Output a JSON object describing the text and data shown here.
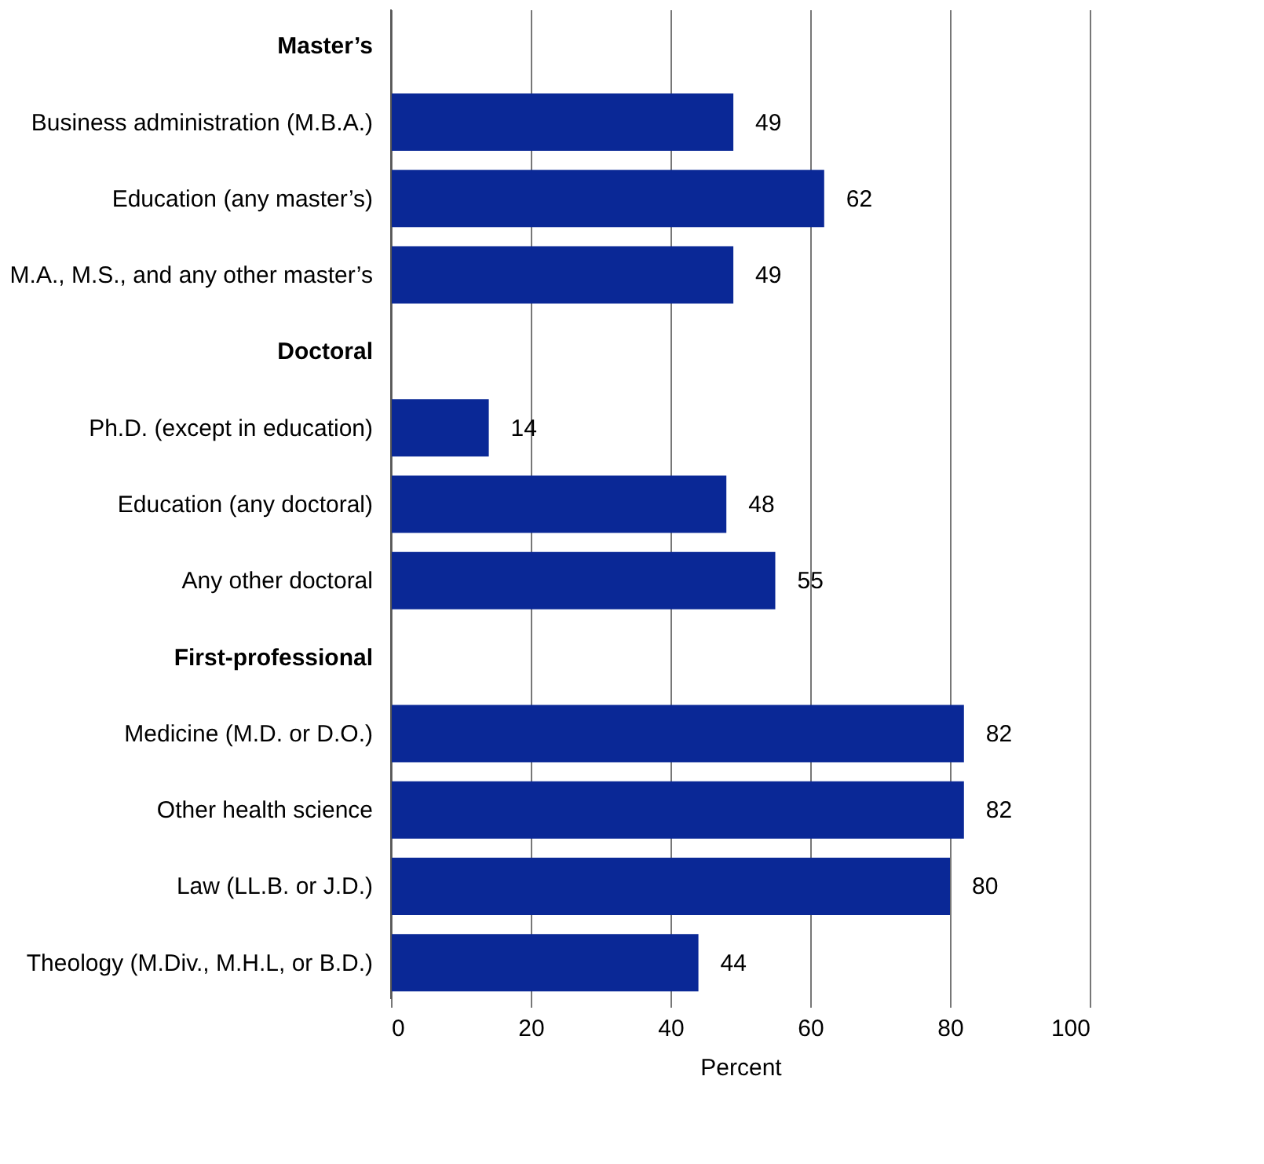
{
  "chart_data": {
    "type": "bar",
    "orientation": "horizontal",
    "xlabel": "Percent",
    "categories": [
      "Master’s",
      "Business administration (M.B.A.)",
      "Education (any master’s)",
      "M.A., M.S., and any other master’s",
      "Doctoral",
      "Ph.D. (except in education)",
      "Education (any doctoral)",
      "Any other doctoral",
      "First-professional",
      "Medicine (M.D. or D.O.)",
      "Other health science",
      "Law (LL.B. or J.D.)",
      "Theology (M.Div., M.H.L, or B.D.)"
    ],
    "values": [
      null,
      49,
      62,
      49,
      null,
      14,
      48,
      55,
      null,
      82,
      82,
      80,
      44
    ],
    "color": "#0a2896",
    "xlim": [
      0,
      100
    ],
    "xticks": [
      0,
      20,
      40,
      60,
      80,
      100
    ],
    "grid": "x",
    "data_labels": true
  }
}
